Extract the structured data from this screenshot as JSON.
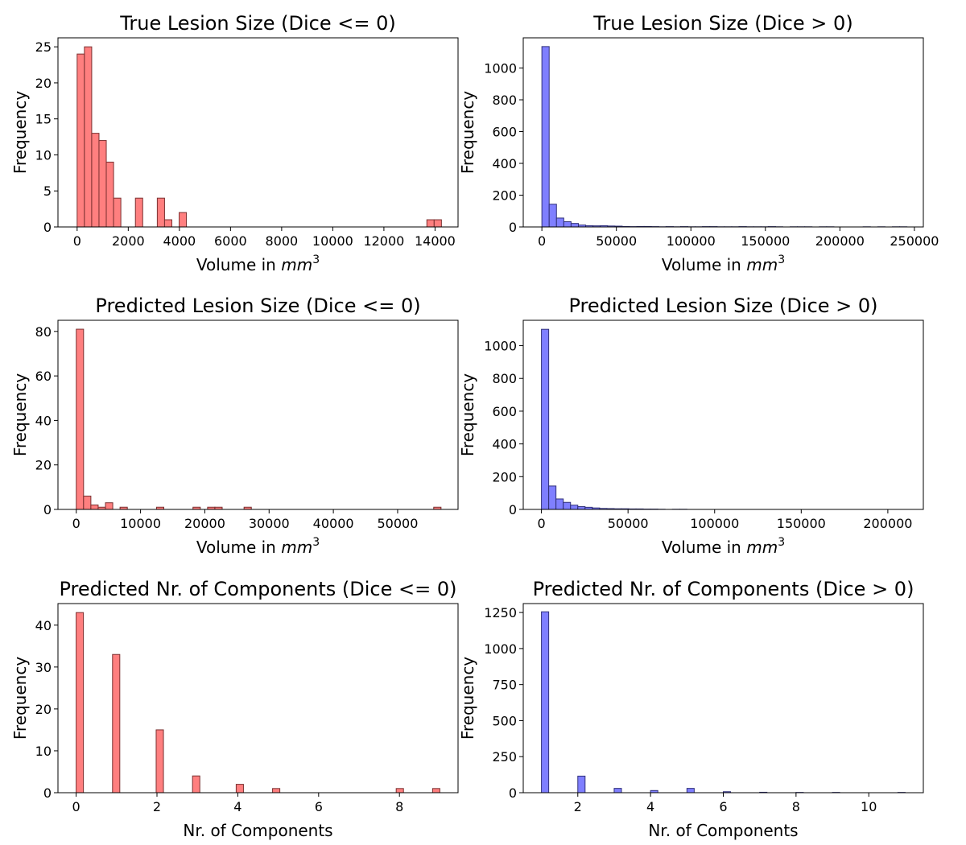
{
  "figure": {
    "background": "#ffffff"
  },
  "chart_data": [
    {
      "id": "true-lesion-neg",
      "type": "bar",
      "title": "True Lesion Size (Dice <= 0)",
      "xlabel": "Volume in mm³",
      "xlabel_parts": [
        "Volume in ",
        "mm",
        "3"
      ],
      "ylabel": "Frequency",
      "color": "#ff7f7f",
      "edge_color": "#7a3030",
      "xlim": [
        -750,
        14900
      ],
      "ylim": [
        0,
        26.25
      ],
      "xticks": [
        0,
        2000,
        4000,
        6000,
        8000,
        10000,
        12000,
        14000
      ],
      "xtick_labels": [
        "0",
        "2000",
        "4000",
        "6000",
        "8000",
        "10000",
        "12000",
        "14000"
      ],
      "yticks": [
        0,
        5,
        10,
        15,
        20,
        25
      ],
      "bin_start": 0,
      "bin_width": 285,
      "values": [
        24,
        25,
        13,
        12,
        9,
        4,
        0,
        0,
        4,
        0,
        0,
        4,
        1,
        0,
        2,
        0,
        0,
        0,
        0,
        0,
        0,
        0,
        0,
        0,
        0,
        0,
        0,
        0,
        0,
        0,
        0,
        0,
        0,
        0,
        0,
        0,
        0,
        0,
        0,
        0,
        0,
        0,
        0,
        0,
        0,
        0,
        0,
        0,
        1,
        1
      ]
    },
    {
      "id": "true-lesion-pos",
      "type": "bar",
      "title": "True Lesion Size (Dice > 0)",
      "xlabel": "Volume in mm³",
      "xlabel_parts": [
        "Volume in ",
        "mm",
        "3"
      ],
      "ylabel": "Frequency",
      "color": "#7f7fff",
      "edge_color": "#30307a",
      "xlim": [
        -12500,
        256000
      ],
      "ylim": [
        0,
        1190
      ],
      "xticks": [
        0,
        50000,
        100000,
        150000,
        200000,
        250000
      ],
      "xtick_labels": [
        "0",
        "50000",
        "100000",
        "150000",
        "200000",
        "250000"
      ],
      "yticks": [
        0,
        200,
        400,
        600,
        800,
        1000
      ],
      "bin_start": 0,
      "bin_width": 4900,
      "values": [
        1135,
        143,
        56,
        33,
        22,
        12,
        8,
        7,
        8,
        6,
        5,
        3,
        2,
        3,
        3,
        2,
        1,
        2,
        1,
        2,
        1,
        1,
        2,
        2,
        1,
        1,
        1,
        2,
        1,
        1,
        1,
        2,
        1,
        0,
        1,
        1,
        1,
        0,
        1,
        1,
        0,
        0,
        0,
        0,
        1,
        0,
        1,
        0,
        1,
        1
      ]
    },
    {
      "id": "pred-lesion-neg",
      "type": "bar",
      "title": "Predicted Lesion Size (Dice <= 0)",
      "xlabel": "Volume in mm³",
      "xlabel_parts": [
        "Volume in ",
        "mm",
        "3"
      ],
      "ylabel": "Frequency",
      "color": "#ff7f7f",
      "edge_color": "#7a3030",
      "xlim": [
        -2850,
        59400
      ],
      "ylim": [
        0,
        85
      ],
      "xticks": [
        0,
        10000,
        20000,
        30000,
        40000,
        50000
      ],
      "xtick_labels": [
        "0",
        "10000",
        "20000",
        "30000",
        "40000",
        "50000"
      ],
      "yticks": [
        0,
        20,
        40,
        60,
        80
      ],
      "bin_start": 0,
      "bin_width": 1135,
      "values": [
        81,
        6,
        2,
        1,
        3,
        0,
        1,
        0,
        0,
        0,
        0,
        1,
        0,
        0,
        0,
        0,
        1,
        0,
        1,
        1,
        0,
        0,
        0,
        1,
        0,
        0,
        0,
        0,
        0,
        0,
        0,
        0,
        0,
        0,
        0,
        0,
        0,
        0,
        0,
        0,
        0,
        0,
        0,
        0,
        0,
        0,
        0,
        0,
        0,
        1
      ]
    },
    {
      "id": "pred-lesion-pos",
      "type": "bar",
      "title": "Predicted Lesion Size (Dice > 0)",
      "xlabel": "Volume in mm³",
      "xlabel_parts": [
        "Volume in ",
        "mm",
        "3"
      ],
      "ylabel": "Frequency",
      "color": "#7f7fff",
      "edge_color": "#30307a",
      "xlim": [
        -10500,
        220500
      ],
      "ylim": [
        0,
        1155
      ],
      "xticks": [
        0,
        50000,
        100000,
        150000,
        200000
      ],
      "xtick_labels": [
        "0",
        "50000",
        "100000",
        "150000",
        "200000"
      ],
      "yticks": [
        0,
        200,
        400,
        600,
        800,
        1000
      ],
      "bin_start": 0,
      "bin_width": 4200,
      "values": [
        1100,
        143,
        64,
        43,
        26,
        17,
        13,
        9,
        6,
        5,
        4,
        4,
        3,
        3,
        2,
        2,
        1,
        0,
        1,
        1,
        0,
        0,
        0,
        0,
        0,
        0,
        0,
        0,
        0,
        0,
        0,
        0,
        0,
        0,
        0,
        0,
        0,
        0,
        0,
        0,
        0,
        0,
        0,
        0,
        0,
        0,
        0,
        0,
        0,
        0
      ]
    },
    {
      "id": "pred-components-neg",
      "type": "bar",
      "title": "Predicted Nr. of Components (Dice <= 0)",
      "xlabel": "Nr. of Components",
      "xlabel_parts": [
        "Nr. of Components",
        "",
        ""
      ],
      "ylabel": "Frequency",
      "color": "#ff7f7f",
      "edge_color": "#7a3030",
      "xlim": [
        -0.45,
        9.45
      ],
      "ylim": [
        0,
        45.15
      ],
      "xticks": [
        0,
        2,
        4,
        6,
        8
      ],
      "xtick_labels": [
        "0",
        "2",
        "4",
        "6",
        "8"
      ],
      "yticks": [
        0,
        10,
        20,
        30,
        40
      ],
      "bin_start": 0,
      "bin_width": 0.18,
      "values": [
        43,
        0,
        0,
        0,
        0,
        33,
        0,
        0,
        0,
        0,
        0,
        15,
        0,
        0,
        0,
        0,
        4,
        0,
        0,
        0,
        0,
        0,
        2,
        0,
        0,
        0,
        0,
        1,
        0,
        0,
        0,
        0,
        0,
        0,
        0,
        0,
        0,
        0,
        0,
        0,
        0,
        0,
        0,
        0,
        1,
        0,
        0,
        0,
        0,
        1
      ]
    },
    {
      "id": "pred-components-pos",
      "type": "bar",
      "title": "Predicted Nr. of Components (Dice > 0)",
      "xlabel": "Nr. of Components",
      "xlabel_parts": [
        "Nr. of Components",
        "",
        ""
      ],
      "ylabel": "Frequency",
      "color": "#7f7fff",
      "edge_color": "#30307a",
      "xlim": [
        0.5,
        11.5
      ],
      "ylim": [
        0,
        1312
      ],
      "xticks": [
        2,
        4,
        6,
        8,
        10
      ],
      "xtick_labels": [
        "2",
        "4",
        "6",
        "8",
        "10"
      ],
      "yticks": [
        0,
        250,
        500,
        750,
        1000,
        1250
      ],
      "bin_start": 1,
      "bin_width": 0.2,
      "values": [
        1255,
        0,
        0,
        0,
        0,
        115,
        0,
        0,
        0,
        0,
        30,
        0,
        0,
        0,
        0,
        15,
        0,
        0,
        0,
        0,
        30,
        0,
        0,
        0,
        0,
        7,
        0,
        0,
        0,
        0,
        3,
        0,
        0,
        0,
        0,
        2,
        0,
        0,
        0,
        0,
        2,
        0,
        0,
        0,
        0,
        0,
        0,
        0,
        0,
        2
      ]
    }
  ]
}
